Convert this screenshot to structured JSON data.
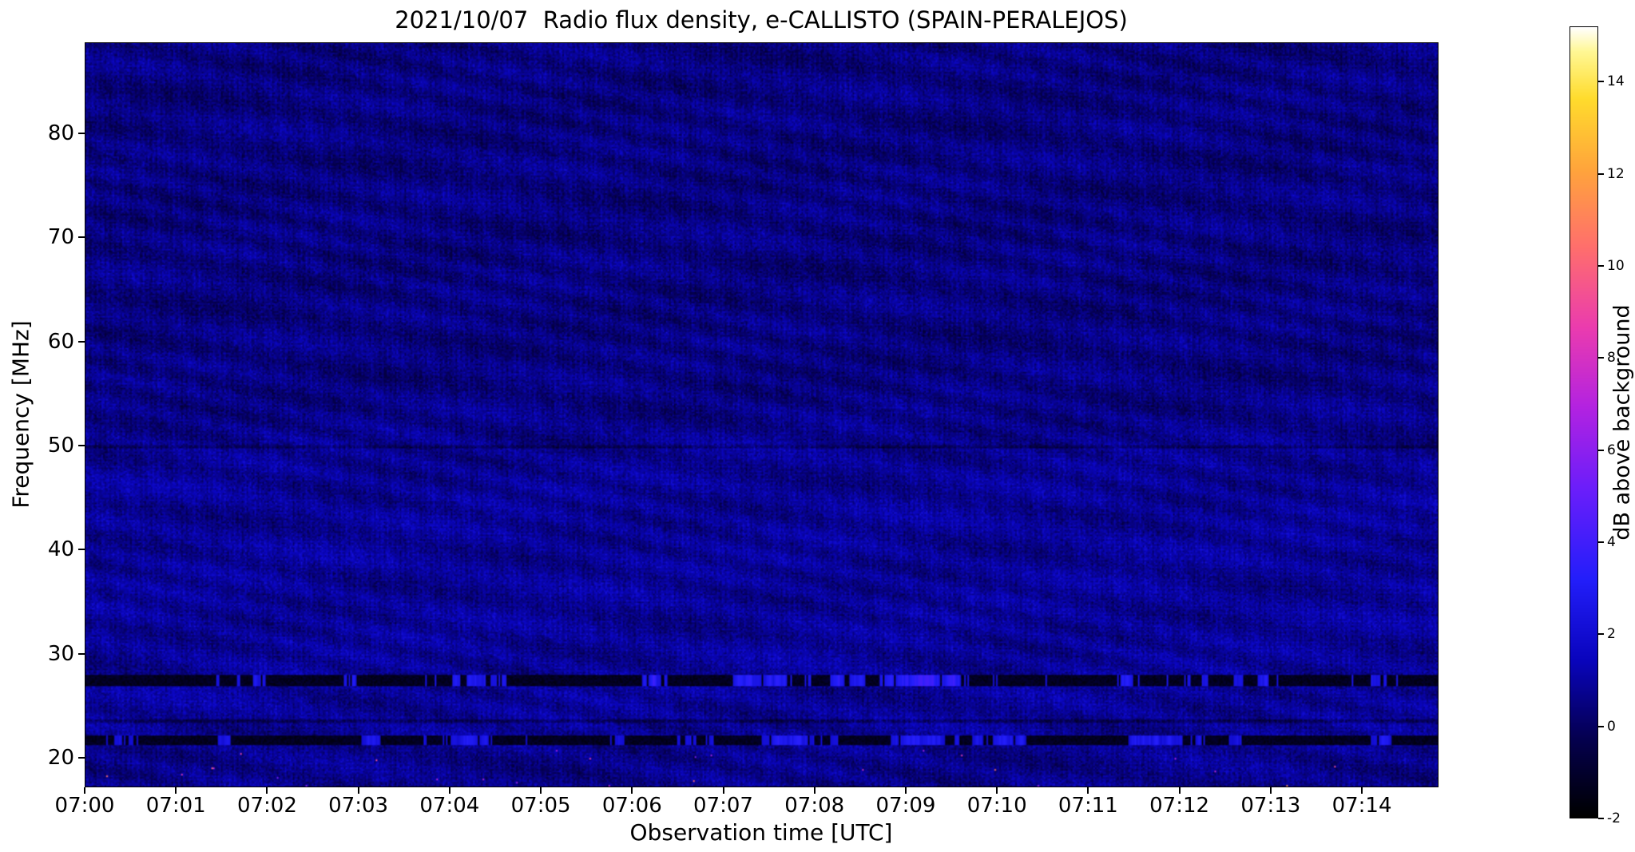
{
  "page": {
    "background_color": "#ffffff",
    "frame_color": "#000000"
  },
  "observation": {
    "date": "2021/10/07",
    "instrument": "e-CALLISTO",
    "station": "SPAIN-PERALEJOS"
  },
  "chart_data": {
    "type": "heatmap",
    "title": "2021/10/07  Radio flux density, e-CALLISTO (SPAIN-PERALEJOS)",
    "xlabel": "Observation time [UTC]",
    "ylabel": "Frequency [MHz]",
    "x_ticks": [
      "07:00",
      "07:01",
      "07:02",
      "07:03",
      "07:04",
      "07:05",
      "07:06",
      "07:07",
      "07:08",
      "07:09",
      "07:10",
      "07:11",
      "07:12",
      "07:13",
      "07:14"
    ],
    "x_range_minutes": [
      0,
      14.84
    ],
    "y_ticks": [
      20,
      30,
      40,
      50,
      60,
      70,
      80
    ],
    "y_range_mhz": [
      17.2,
      88.7
    ],
    "grid": false,
    "colorbar": {
      "label": "dB above background",
      "ticks": [
        -2,
        0,
        2,
        4,
        6,
        8,
        10,
        12,
        14
      ],
      "range": [
        -2,
        15.2
      ],
      "position": "right",
      "colormap_stops": [
        {
          "p": 0.0,
          "rgb": [
            0,
            0,
            0
          ]
        },
        {
          "p": 0.1,
          "rgb": [
            5,
            0,
            80
          ]
        },
        {
          "p": 0.2,
          "rgb": [
            10,
            5,
            190
          ]
        },
        {
          "p": 0.3,
          "rgb": [
            35,
            30,
            250
          ]
        },
        {
          "p": 0.42,
          "rgb": [
            110,
            30,
            250
          ]
        },
        {
          "p": 0.52,
          "rgb": [
            180,
            35,
            225
          ]
        },
        {
          "p": 0.62,
          "rgb": [
            235,
            60,
            175
          ]
        },
        {
          "p": 0.72,
          "rgb": [
            255,
            110,
            110
          ]
        },
        {
          "p": 0.82,
          "rgb": [
            255,
            165,
            60
          ]
        },
        {
          "p": 0.91,
          "rgb": [
            255,
            220,
            45
          ]
        },
        {
          "p": 0.97,
          "rgb": [
            255,
            248,
            150
          ]
        },
        {
          "p": 1.0,
          "rgb": [
            255,
            255,
            255
          ]
        }
      ]
    },
    "background_level_db": 0.6,
    "noise_sigma_db": 0.5,
    "features": [
      {
        "type": "band",
        "freq_range_mhz": [
          30,
          51
        ],
        "level_db": 0.8,
        "note": "brighter noisy band"
      },
      {
        "type": "band",
        "freq_range_mhz": [
          51,
          88.7
        ],
        "level_db": 0.45,
        "note": "darker wavy interference region"
      },
      {
        "type": "absorption-line",
        "freq_mhz": 27.35,
        "depth_db": -1.4,
        "bright_dashes_db": 3.0,
        "note": "dark RFI line with intermittent bright blue dashes"
      },
      {
        "type": "absorption-line",
        "freq_mhz": 21.6,
        "depth_db": -1.3,
        "bright_dashes_db": 2.5,
        "note": "dark RFI line with sparse bright dashes"
      },
      {
        "type": "faint-dark-line",
        "freq_mhz": 23.4,
        "depth_db": -0.9
      },
      {
        "type": "faint-dark-line",
        "freq_mhz": 49.9,
        "depth_db": -0.7
      },
      {
        "type": "sparse-specks",
        "freq_range_mhz": [
          17.5,
          20.6
        ],
        "level_db": 8,
        "density": 0.0007,
        "note": "isolated pink/red pixels near bottom"
      }
    ]
  }
}
